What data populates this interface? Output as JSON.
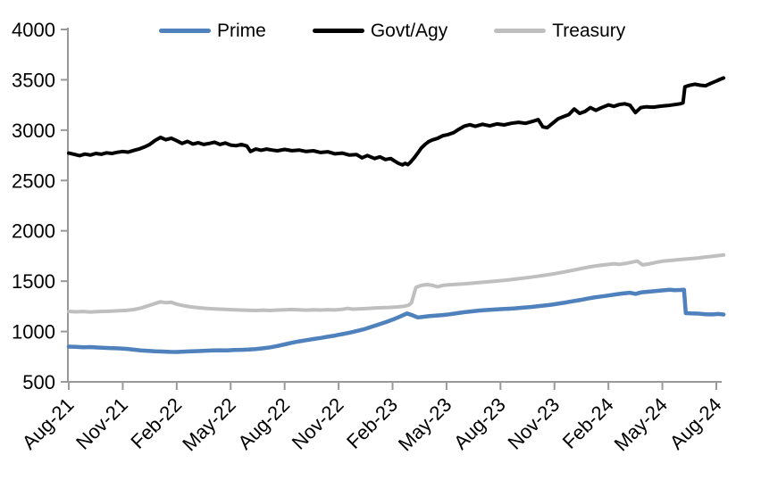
{
  "chart_data": {
    "type": "line",
    "title": "",
    "xlabel": "",
    "ylabel": "",
    "grid": false,
    "legend_position": "top",
    "x_axis": {
      "labels": [
        "Aug-21",
        "Nov-21",
        "Feb-22",
        "May-22",
        "Aug-22",
        "Nov-22",
        "Feb-23",
        "May-23",
        "Aug-23",
        "Nov-23",
        "Feb-24",
        "May-24",
        "Aug-24"
      ],
      "label_interval_months": 3,
      "months_span": 36
    },
    "y_axis": {
      "min": 500,
      "max": 4000,
      "step": 500,
      "ticks": [
        4000,
        3500,
        3000,
        2500,
        2000,
        1500,
        1000,
        500
      ]
    },
    "series": [
      {
        "name": "Prime",
        "color": "#4f81bd",
        "width": 4.5,
        "points": [
          [
            0,
            850
          ],
          [
            0.4,
            847
          ],
          [
            0.8,
            843
          ],
          [
            1.2,
            846
          ],
          [
            1.6,
            841
          ],
          [
            2,
            838
          ],
          [
            2.4,
            835
          ],
          [
            2.8,
            832
          ],
          [
            3.2,
            828
          ],
          [
            3.6,
            820
          ],
          [
            4,
            813
          ],
          [
            4.4,
            808
          ],
          [
            4.8,
            804
          ],
          [
            5.2,
            801
          ],
          [
            5.6,
            798
          ],
          [
            6,
            797
          ],
          [
            6.4,
            800
          ],
          [
            6.8,
            803
          ],
          [
            7.2,
            806
          ],
          [
            7.6,
            809
          ],
          [
            8,
            812
          ],
          [
            8.4,
            814
          ],
          [
            8.8,
            813
          ],
          [
            9.2,
            816
          ],
          [
            9.6,
            818
          ],
          [
            10,
            821
          ],
          [
            10.4,
            826
          ],
          [
            10.8,
            833
          ],
          [
            11.2,
            843
          ],
          [
            11.6,
            856
          ],
          [
            12,
            872
          ],
          [
            12.4,
            888
          ],
          [
            12.8,
            902
          ],
          [
            13.2,
            914
          ],
          [
            13.6,
            925
          ],
          [
            14,
            936
          ],
          [
            14.4,
            948
          ],
          [
            14.8,
            960
          ],
          [
            15.2,
            974
          ],
          [
            15.6,
            988
          ],
          [
            16,
            1004
          ],
          [
            16.4,
            1022
          ],
          [
            16.8,
            1045
          ],
          [
            17.2,
            1068
          ],
          [
            17.6,
            1092
          ],
          [
            18,
            1118
          ],
          [
            18.4,
            1148
          ],
          [
            18.8,
            1180
          ],
          [
            19.1,
            1162
          ],
          [
            19.4,
            1140
          ],
          [
            19.7,
            1146
          ],
          [
            20,
            1152
          ],
          [
            20.4,
            1158
          ],
          [
            20.8,
            1164
          ],
          [
            21.2,
            1172
          ],
          [
            21.6,
            1182
          ],
          [
            22,
            1192
          ],
          [
            22.4,
            1200
          ],
          [
            22.8,
            1208
          ],
          [
            23.2,
            1213
          ],
          [
            23.6,
            1218
          ],
          [
            24,
            1222
          ],
          [
            24.4,
            1226
          ],
          [
            24.8,
            1230
          ],
          [
            25.2,
            1236
          ],
          [
            25.6,
            1242
          ],
          [
            26,
            1250
          ],
          [
            26.4,
            1258
          ],
          [
            26.8,
            1266
          ],
          [
            27.2,
            1276
          ],
          [
            27.6,
            1288
          ],
          [
            28,
            1300
          ],
          [
            28.4,
            1312
          ],
          [
            28.8,
            1326
          ],
          [
            29.2,
            1338
          ],
          [
            29.6,
            1348
          ],
          [
            30,
            1358
          ],
          [
            30.4,
            1368
          ],
          [
            30.8,
            1378
          ],
          [
            31.2,
            1385
          ],
          [
            31.5,
            1374
          ],
          [
            31.8,
            1388
          ],
          [
            32.2,
            1395
          ],
          [
            32.6,
            1402
          ],
          [
            33,
            1408
          ],
          [
            33.4,
            1414
          ],
          [
            33.7,
            1410
          ],
          [
            34,
            1413
          ],
          [
            34.2,
            1415
          ],
          [
            34.3,
            1182
          ],
          [
            34.6,
            1180
          ],
          [
            35,
            1178
          ],
          [
            35.4,
            1172
          ],
          [
            35.8,
            1170
          ],
          [
            36.1,
            1174
          ],
          [
            36.4,
            1169
          ]
        ]
      },
      {
        "name": "Govt/Agy",
        "color": "#000000",
        "width": 4,
        "points": [
          [
            0,
            2772
          ],
          [
            0.3,
            2760
          ],
          [
            0.6,
            2746
          ],
          [
            0.9,
            2762
          ],
          [
            1.2,
            2752
          ],
          [
            1.5,
            2768
          ],
          [
            1.8,
            2760
          ],
          [
            2.1,
            2775
          ],
          [
            2.4,
            2768
          ],
          [
            2.7,
            2780
          ],
          [
            3,
            2788
          ],
          [
            3.3,
            2782
          ],
          [
            3.6,
            2798
          ],
          [
            3.9,
            2812
          ],
          [
            4.2,
            2832
          ],
          [
            4.5,
            2858
          ],
          [
            4.8,
            2898
          ],
          [
            5.1,
            2928
          ],
          [
            5.4,
            2905
          ],
          [
            5.7,
            2920
          ],
          [
            6,
            2895
          ],
          [
            6.3,
            2868
          ],
          [
            6.6,
            2888
          ],
          [
            6.9,
            2862
          ],
          [
            7.2,
            2875
          ],
          [
            7.5,
            2858
          ],
          [
            7.8,
            2868
          ],
          [
            8.1,
            2880
          ],
          [
            8.4,
            2858
          ],
          [
            8.7,
            2872
          ],
          [
            9,
            2852
          ],
          [
            9.3,
            2845
          ],
          [
            9.6,
            2858
          ],
          [
            9.9,
            2842
          ],
          [
            10.1,
            2788
          ],
          [
            10.4,
            2812
          ],
          [
            10.7,
            2800
          ],
          [
            11,
            2812
          ],
          [
            11.3,
            2802
          ],
          [
            11.6,
            2795
          ],
          [
            12,
            2808
          ],
          [
            12.4,
            2796
          ],
          [
            12.8,
            2802
          ],
          [
            13.2,
            2788
          ],
          [
            13.6,
            2795
          ],
          [
            14,
            2778
          ],
          [
            14.4,
            2785
          ],
          [
            14.8,
            2765
          ],
          [
            15.2,
            2772
          ],
          [
            15.6,
            2752
          ],
          [
            16,
            2758
          ],
          [
            16.3,
            2725
          ],
          [
            16.6,
            2748
          ],
          [
            17,
            2718
          ],
          [
            17.3,
            2735
          ],
          [
            17.6,
            2708
          ],
          [
            17.9,
            2718
          ],
          [
            18.1,
            2695
          ],
          [
            18.35,
            2668
          ],
          [
            18.55,
            2655
          ],
          [
            18.7,
            2670
          ],
          [
            18.85,
            2657
          ],
          [
            19,
            2682
          ],
          [
            19.2,
            2725
          ],
          [
            19.4,
            2772
          ],
          [
            19.6,
            2822
          ],
          [
            19.8,
            2858
          ],
          [
            20,
            2885
          ],
          [
            20.2,
            2902
          ],
          [
            20.5,
            2918
          ],
          [
            20.8,
            2945
          ],
          [
            21.1,
            2956
          ],
          [
            21.4,
            2976
          ],
          [
            21.7,
            3010
          ],
          [
            22,
            3040
          ],
          [
            22.3,
            3054
          ],
          [
            22.6,
            3038
          ],
          [
            23,
            3058
          ],
          [
            23.4,
            3042
          ],
          [
            23.8,
            3062
          ],
          [
            24.2,
            3052
          ],
          [
            24.6,
            3068
          ],
          [
            25,
            3078
          ],
          [
            25.4,
            3068
          ],
          [
            25.8,
            3088
          ],
          [
            26.1,
            3104
          ],
          [
            26.35,
            3032
          ],
          [
            26.6,
            3024
          ],
          [
            26.9,
            3068
          ],
          [
            27.2,
            3112
          ],
          [
            27.5,
            3134
          ],
          [
            27.8,
            3155
          ],
          [
            28.1,
            3210
          ],
          [
            28.4,
            3166
          ],
          [
            28.7,
            3186
          ],
          [
            29,
            3224
          ],
          [
            29.3,
            3196
          ],
          [
            29.6,
            3222
          ],
          [
            30,
            3250
          ],
          [
            30.3,
            3236
          ],
          [
            30.6,
            3254
          ],
          [
            30.9,
            3262
          ],
          [
            31.2,
            3248
          ],
          [
            31.5,
            3174
          ],
          [
            31.8,
            3224
          ],
          [
            32.1,
            3232
          ],
          [
            32.5,
            3228
          ],
          [
            32.9,
            3238
          ],
          [
            33.3,
            3244
          ],
          [
            33.7,
            3254
          ],
          [
            34,
            3262
          ],
          [
            34.15,
            3272
          ],
          [
            34.25,
            3430
          ],
          [
            34.5,
            3444
          ],
          [
            34.8,
            3456
          ],
          [
            35.1,
            3446
          ],
          [
            35.4,
            3440
          ],
          [
            35.7,
            3466
          ],
          [
            36,
            3488
          ],
          [
            36.2,
            3504
          ],
          [
            36.4,
            3518
          ]
        ]
      },
      {
        "name": "Treasury",
        "color": "#bfbfbf",
        "width": 4,
        "points": [
          [
            0,
            1200
          ],
          [
            0.4,
            1196
          ],
          [
            0.8,
            1199
          ],
          [
            1.2,
            1194
          ],
          [
            1.6,
            1198
          ],
          [
            2,
            1200
          ],
          [
            2.4,
            1203
          ],
          [
            2.8,
            1206
          ],
          [
            3.2,
            1210
          ],
          [
            3.6,
            1218
          ],
          [
            4,
            1233
          ],
          [
            4.4,
            1255
          ],
          [
            4.8,
            1278
          ],
          [
            5.1,
            1295
          ],
          [
            5.4,
            1286
          ],
          [
            5.7,
            1290
          ],
          [
            6,
            1272
          ],
          [
            6.4,
            1256
          ],
          [
            6.8,
            1244
          ],
          [
            7.2,
            1236
          ],
          [
            7.6,
            1230
          ],
          [
            8,
            1226
          ],
          [
            8.4,
            1222
          ],
          [
            8.8,
            1219
          ],
          [
            9.2,
            1216
          ],
          [
            9.6,
            1213
          ],
          [
            10,
            1211
          ],
          [
            10.4,
            1209
          ],
          [
            10.8,
            1212
          ],
          [
            11.2,
            1209
          ],
          [
            11.6,
            1213
          ],
          [
            12,
            1216
          ],
          [
            12.4,
            1219
          ],
          [
            12.8,
            1215
          ],
          [
            13.2,
            1212
          ],
          [
            13.6,
            1216
          ],
          [
            14,
            1213
          ],
          [
            14.4,
            1217
          ],
          [
            14.8,
            1214
          ],
          [
            15.2,
            1220
          ],
          [
            15.5,
            1229
          ],
          [
            15.8,
            1222
          ],
          [
            16.2,
            1226
          ],
          [
            16.6,
            1229
          ],
          [
            17,
            1233
          ],
          [
            17.4,
            1236
          ],
          [
            17.8,
            1239
          ],
          [
            18.2,
            1243
          ],
          [
            18.6,
            1250
          ],
          [
            18.9,
            1262
          ],
          [
            19.05,
            1285
          ],
          [
            19.3,
            1438
          ],
          [
            19.6,
            1458
          ],
          [
            19.9,
            1466
          ],
          [
            20.2,
            1460
          ],
          [
            20.5,
            1444
          ],
          [
            20.8,
            1458
          ],
          [
            21.1,
            1464
          ],
          [
            21.5,
            1468
          ],
          [
            22,
            1474
          ],
          [
            22.5,
            1481
          ],
          [
            23,
            1489
          ],
          [
            23.5,
            1497
          ],
          [
            24,
            1505
          ],
          [
            24.5,
            1514
          ],
          [
            25,
            1524
          ],
          [
            25.5,
            1535
          ],
          [
            26,
            1547
          ],
          [
            26.5,
            1560
          ],
          [
            27,
            1574
          ],
          [
            27.5,
            1590
          ],
          [
            28,
            1608
          ],
          [
            28.5,
            1626
          ],
          [
            29,
            1643
          ],
          [
            29.5,
            1656
          ],
          [
            30,
            1666
          ],
          [
            30.3,
            1673
          ],
          [
            30.6,
            1667
          ],
          [
            31,
            1678
          ],
          [
            31.3,
            1688
          ],
          [
            31.6,
            1700
          ],
          [
            31.9,
            1662
          ],
          [
            32.2,
            1670
          ],
          [
            32.6,
            1685
          ],
          [
            33,
            1698
          ],
          [
            33.4,
            1705
          ],
          [
            33.8,
            1712
          ],
          [
            34.2,
            1718
          ],
          [
            34.6,
            1724
          ],
          [
            35,
            1731
          ],
          [
            35.4,
            1740
          ],
          [
            35.8,
            1748
          ],
          [
            36.1,
            1754
          ],
          [
            36.4,
            1760
          ]
        ]
      }
    ]
  },
  "style": {
    "axis_color": "#999999",
    "text_color": "#000000",
    "background": "#ffffff"
  }
}
